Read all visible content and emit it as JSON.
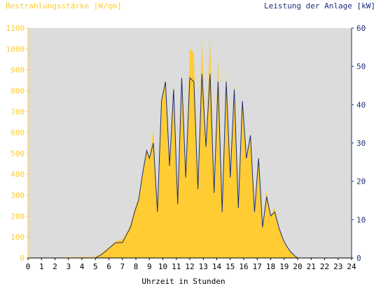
{
  "chart_data": {
    "type": "area",
    "left_axis_label": "Bestrahlungsstärke [W/qm]",
    "right_axis_label": "Leistung der Anlage [kW]",
    "xlabel": "Uhrzeit in Stunden",
    "xlim": [
      0,
      24
    ],
    "ylim_left": [
      0,
      1100
    ],
    "ylim_right": [
      0,
      60
    ],
    "x_ticks": [
      "0",
      "1",
      "2",
      "3",
      "4",
      "5",
      "6",
      "7",
      "8",
      "9",
      "10",
      "11",
      "12",
      "13",
      "14",
      "15",
      "16",
      "17",
      "18",
      "19",
      "20",
      "21",
      "22",
      "23",
      "24"
    ],
    "y_left_ticks": [
      "0",
      "100",
      "200",
      "300",
      "400",
      "500",
      "600",
      "700",
      "800",
      "900",
      "1000",
      "1100"
    ],
    "y_right_ticks": [
      "0",
      "10",
      "20",
      "30",
      "40",
      "50",
      "60"
    ],
    "grid": false,
    "colors": {
      "plot_background": "#dcdcdc",
      "irradiance_fill": "#ffcc33",
      "power_line": "#1c2f7a",
      "left_axis_text": "#ffcc33",
      "right_axis_text": "#1c2f7a",
      "bottom_axis_text": "#000000"
    },
    "series": [
      {
        "axis": "left",
        "style": "area",
        "x": [
          0,
          5.0,
          5.5,
          6.0,
          6.5,
          7.0,
          7.3,
          7.6,
          7.9,
          8.2,
          8.5,
          8.8,
          9.0,
          9.3,
          9.6,
          9.9,
          10.2,
          10.5,
          10.8,
          11.1,
          11.4,
          11.7,
          12.0,
          12.3,
          12.6,
          12.9,
          13.2,
          13.5,
          13.8,
          14.1,
          14.4,
          14.7,
          15.0,
          15.3,
          15.6,
          15.9,
          16.2,
          16.5,
          16.8,
          17.1,
          17.4,
          17.7,
          18.0,
          18.3,
          18.6,
          18.9,
          19.2,
          19.5,
          19.8,
          20.0,
          20.3,
          24
        ],
        "y": [
          0,
          5,
          25,
          50,
          80,
          90,
          120,
          160,
          230,
          290,
          400,
          520,
          480,
          610,
          220,
          760,
          850,
          420,
          830,
          250,
          880,
          380,
          1000,
          980,
          330,
          1050,
          520,
          1060,
          320,
          960,
          210,
          880,
          380,
          830,
          250,
          760,
          470,
          590,
          220,
          470,
          150,
          320,
          200,
          240,
          150,
          90,
          50,
          25,
          10,
          5,
          0,
          0
        ]
      },
      {
        "axis": "right",
        "style": "line",
        "x": [
          0,
          5.0,
          5.5,
          6.0,
          6.5,
          7.0,
          7.3,
          7.6,
          7.9,
          8.2,
          8.5,
          8.8,
          9.0,
          9.3,
          9.6,
          9.9,
          10.2,
          10.5,
          10.8,
          11.1,
          11.4,
          11.7,
          12.0,
          12.3,
          12.6,
          12.9,
          13.2,
          13.5,
          13.8,
          14.1,
          14.4,
          14.7,
          15.0,
          15.3,
          15.6,
          15.9,
          16.2,
          16.5,
          16.8,
          17.1,
          17.4,
          17.7,
          18.0,
          18.3,
          18.6,
          18.9,
          19.2,
          19.5,
          19.8,
          20.0,
          20.3,
          24
        ],
        "y": [
          0,
          0,
          1,
          2.5,
          4,
          4,
          6,
          8,
          12,
          15,
          22,
          28,
          26,
          30,
          12,
          41,
          46,
          24,
          44,
          14,
          47,
          21,
          47,
          46,
          18,
          48,
          29,
          48,
          17,
          46,
          12,
          46,
          21,
          44,
          13,
          41,
          26,
          32,
          12,
          26,
          8,
          16,
          11,
          12,
          8,
          5,
          3,
          1.5,
          0.5,
          0,
          0,
          0
        ]
      }
    ]
  }
}
